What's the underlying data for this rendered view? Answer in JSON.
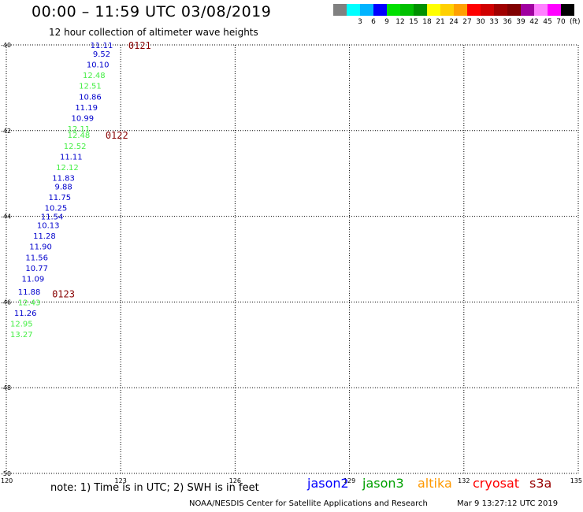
{
  "header": {
    "title": "00:00 – 11:59 UTC 03/08/2019",
    "subtitle": "12 hour collection of altimeter wave heights"
  },
  "colorbar": {
    "unit_label": "(ft)",
    "swatches": [
      {
        "label": "",
        "color": "#808080"
      },
      {
        "label": "3",
        "color": "#00ffff"
      },
      {
        "label": "6",
        "color": "#00b4ff"
      },
      {
        "label": "9",
        "color": "#0000ff"
      },
      {
        "label": "12",
        "color": "#00e000"
      },
      {
        "label": "15",
        "color": "#00c000"
      },
      {
        "label": "18",
        "color": "#009000"
      },
      {
        "label": "21",
        "color": "#ffff00"
      },
      {
        "label": "24",
        "color": "#ffd000"
      },
      {
        "label": "27",
        "color": "#ffa000"
      },
      {
        "label": "30",
        "color": "#ff0000"
      },
      {
        "label": "33",
        "color": "#d00000"
      },
      {
        "label": "36",
        "color": "#a00000"
      },
      {
        "label": "39",
        "color": "#800000"
      },
      {
        "label": "42",
        "color": "#a000a0"
      },
      {
        "label": "45",
        "color": "#ff80ff"
      },
      {
        "label": "70",
        "color": "#ff00ff"
      },
      {
        "label": "",
        "color": "#000000"
      }
    ]
  },
  "map": {
    "lon_ticks": [
      120,
      123,
      126,
      129,
      132,
      135
    ],
    "lat_ticks": [
      -40,
      -42,
      -44,
      -46,
      -48,
      -50
    ],
    "lon_tick_labels": [
      "120",
      "123",
      "126",
      "129",
      "132",
      "135"
    ],
    "lat_tick_labels": [
      "-40",
      "-42",
      "-44",
      "-46",
      "-48",
      "-50"
    ],
    "time_labels": [
      {
        "text": "0121",
        "lon": 123.2,
        "lat": -40.0
      },
      {
        "text": "0122",
        "lon": 122.6,
        "lat": -42.1
      },
      {
        "text": "0123",
        "lon": 121.2,
        "lat": -45.8
      }
    ],
    "wave_points": [
      {
        "lon": 122.5,
        "lat": -40.0,
        "text": "11.11",
        "color": "#0000cc"
      },
      {
        "lon": 122.5,
        "lat": -40.2,
        "text": "9.52",
        "color": "#0000cc"
      },
      {
        "lon": 122.4,
        "lat": -40.45,
        "text": "10.10",
        "color": "#0000cc"
      },
      {
        "lon": 122.3,
        "lat": -40.7,
        "text": "12.48",
        "color": "#44ee44"
      },
      {
        "lon": 122.2,
        "lat": -40.95,
        "text": "12.51",
        "color": "#44ee44"
      },
      {
        "lon": 122.2,
        "lat": -41.2,
        "text": "10.86",
        "color": "#0000cc"
      },
      {
        "lon": 122.1,
        "lat": -41.45,
        "text": "11.19",
        "color": "#0000cc"
      },
      {
        "lon": 122.0,
        "lat": -41.7,
        "text": "10.99",
        "color": "#0000cc"
      },
      {
        "lon": 121.9,
        "lat": -41.95,
        "text": "12.11",
        "color": "#44ee44"
      },
      {
        "lon": 121.9,
        "lat": -42.1,
        "text": "12.48",
        "color": "#44ee44"
      },
      {
        "lon": 121.8,
        "lat": -42.35,
        "text": "12.52",
        "color": "#44ee44"
      },
      {
        "lon": 121.7,
        "lat": -42.6,
        "text": "11.11",
        "color": "#0000cc"
      },
      {
        "lon": 121.6,
        "lat": -42.85,
        "text": "12.12",
        "color": "#44ee44"
      },
      {
        "lon": 121.5,
        "lat": -43.1,
        "text": "11.83",
        "color": "#0000cc"
      },
      {
        "lon": 121.5,
        "lat": -43.3,
        "text": "9.88",
        "color": "#0000cc"
      },
      {
        "lon": 121.4,
        "lat": -43.55,
        "text": "11.75",
        "color": "#0000cc"
      },
      {
        "lon": 121.3,
        "lat": -43.8,
        "text": "10.25",
        "color": "#0000cc"
      },
      {
        "lon": 121.2,
        "lat": -44.0,
        "text": "11.54",
        "color": "#0000cc"
      },
      {
        "lon": 121.1,
        "lat": -44.2,
        "text": "10.13",
        "color": "#0000cc"
      },
      {
        "lon": 121.0,
        "lat": -44.45,
        "text": "11.28",
        "color": "#0000cc"
      },
      {
        "lon": 120.9,
        "lat": -44.7,
        "text": "11.90",
        "color": "#0000cc"
      },
      {
        "lon": 120.8,
        "lat": -44.95,
        "text": "11.56",
        "color": "#0000cc"
      },
      {
        "lon": 120.8,
        "lat": -45.2,
        "text": "10.77",
        "color": "#0000cc"
      },
      {
        "lon": 120.7,
        "lat": -45.45,
        "text": "11.09",
        "color": "#0000cc"
      },
      {
        "lon": 120.6,
        "lat": -45.75,
        "text": "11.88",
        "color": "#0000cc"
      },
      {
        "lon": 120.6,
        "lat": -46.0,
        "text": "12.43",
        "color": "#44ee44"
      },
      {
        "lon": 120.5,
        "lat": -46.25,
        "text": "11.26",
        "color": "#0000cc"
      },
      {
        "lon": 120.4,
        "lat": -46.5,
        "text": "12.95",
        "color": "#44ee44"
      },
      {
        "lon": 120.4,
        "lat": -46.75,
        "text": "13.27",
        "color": "#44ee44"
      }
    ]
  },
  "footer": {
    "note": "note:  1) Time is in UTC;  2) SWH is in feet",
    "legend": [
      {
        "label": "jason2",
        "color": "#0000ff"
      },
      {
        "label": "jason3",
        "color": "#00a000"
      },
      {
        "label": "altika",
        "color": "#ff9900"
      },
      {
        "label": "cryosat",
        "color": "#ff0000"
      },
      {
        "label": "s3a",
        "color": "#990000"
      }
    ],
    "credit": "NOAA/NESDIS Center for Satellite Applications and Research",
    "timestamp": "Mar  9 13:27:12 UTC 2019"
  }
}
